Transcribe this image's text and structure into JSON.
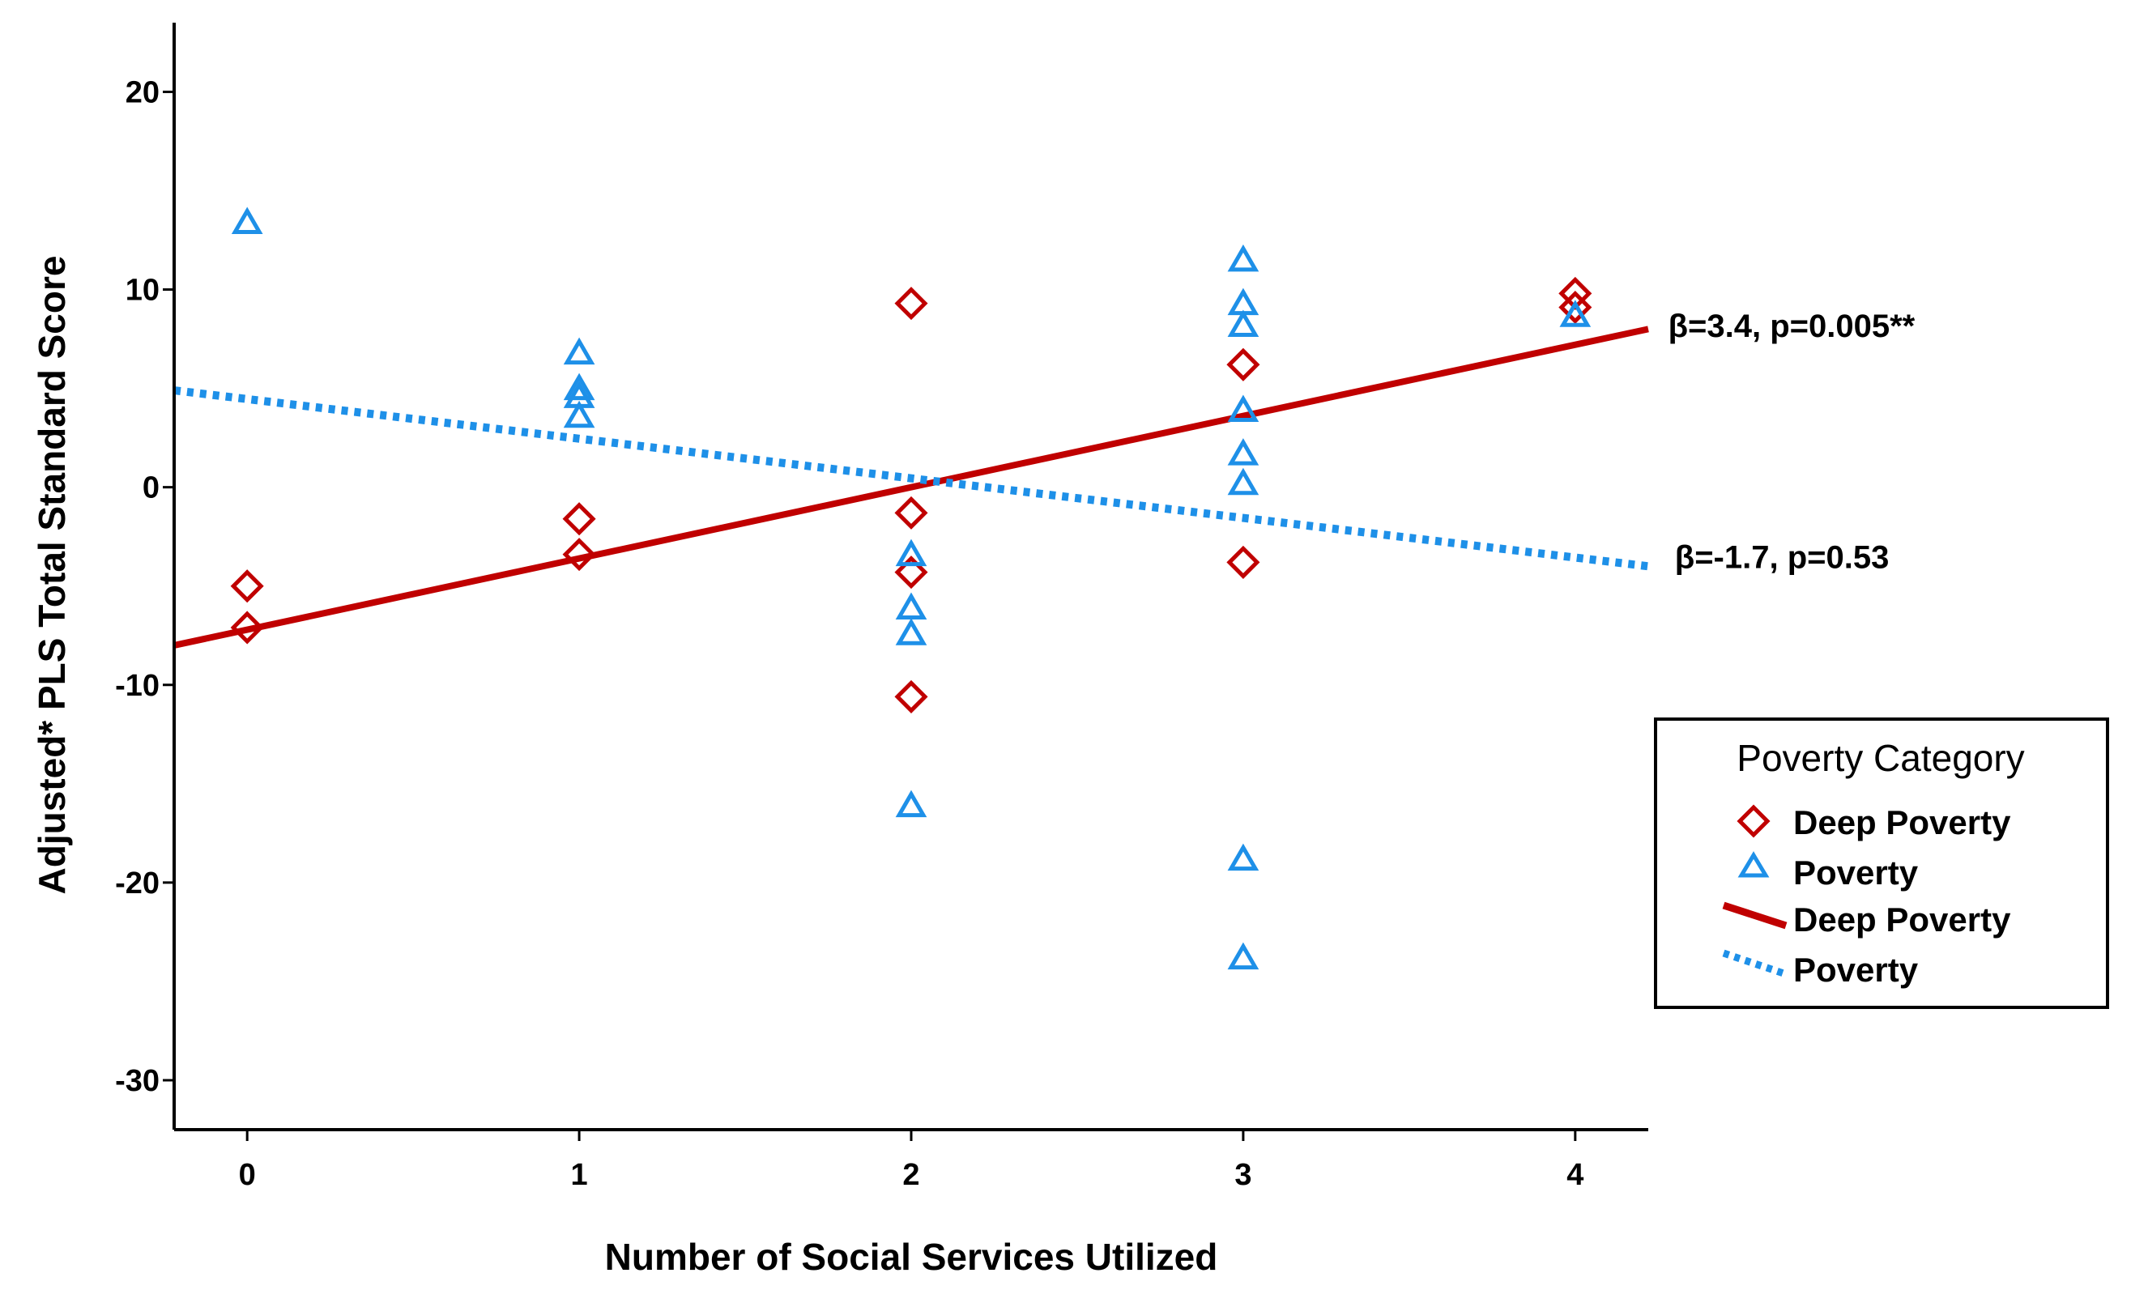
{
  "chart_data": {
    "type": "scatter",
    "title": "",
    "xlabel": "Number of Social Services Utilized",
    "ylabel": "Adjusted* PLS Total Standard Score",
    "xlim": [
      -0.22,
      4.22
    ],
    "ylim": [
      -32.5,
      23.5
    ],
    "x_ticks": [
      0,
      1,
      2,
      3,
      4
    ],
    "y_ticks": [
      -30,
      -20,
      -10,
      0,
      10,
      20
    ],
    "grid": false,
    "legend_position": "right",
    "colors": {
      "deep": "#c00000",
      "poverty": "#1e90e8"
    },
    "series": [
      {
        "name": "Deep Poverty",
        "kind": "points",
        "marker": "diamond",
        "color": "#c00000",
        "points": [
          [
            0,
            -5.0
          ],
          [
            0,
            -7.1
          ],
          [
            1,
            -1.6
          ],
          [
            1,
            -3.4
          ],
          [
            2,
            9.3
          ],
          [
            2,
            -1.3
          ],
          [
            2,
            -4.3
          ],
          [
            2,
            -10.6
          ],
          [
            3,
            6.2
          ],
          [
            3,
            -3.8
          ],
          [
            4,
            9.8
          ],
          [
            4,
            9.1
          ]
        ]
      },
      {
        "name": "Poverty",
        "kind": "points",
        "marker": "triangle",
        "color": "#1e90e8",
        "points": [
          [
            0,
            13.4
          ],
          [
            1,
            6.8
          ],
          [
            1,
            5.0
          ],
          [
            1,
            4.6
          ],
          [
            1,
            3.6
          ],
          [
            2,
            -3.4
          ],
          [
            2,
            -6.1
          ],
          [
            2,
            -7.4
          ],
          [
            2,
            -16.1
          ],
          [
            3,
            11.5
          ],
          [
            3,
            9.3
          ],
          [
            3,
            8.2
          ],
          [
            3,
            3.9
          ],
          [
            3,
            1.7
          ],
          [
            3,
            0.2
          ],
          [
            3,
            -18.8
          ],
          [
            3,
            -23.8
          ],
          [
            4,
            8.7
          ]
        ]
      },
      {
        "name": "Deep Poverty",
        "kind": "fit-line",
        "style": "solid",
        "color": "#c00000",
        "x": [
          -0.22,
          4.22
        ],
        "y": [
          -8.0,
          8.0
        ]
      },
      {
        "name": "Poverty",
        "kind": "fit-line",
        "style": "dotted",
        "color": "#1e90e8",
        "x": [
          -0.22,
          4.22
        ],
        "y": [
          4.9,
          -4.0
        ]
      }
    ],
    "annotations": [
      {
        "text": "β=3.4, p=0.005**",
        "x": 4.28,
        "y": 7.6
      },
      {
        "text": "β=-1.7, p=0.53",
        "x": 4.3,
        "y": -4.1
      }
    ],
    "legend": {
      "title": "Poverty Category",
      "items": [
        {
          "label": "Deep Poverty",
          "symbol": "diamond",
          "color": "#c00000"
        },
        {
          "label": "Poverty",
          "symbol": "triangle",
          "color": "#1e90e8"
        },
        {
          "label": "Deep Poverty",
          "symbol": "solid-line",
          "color": "#c00000"
        },
        {
          "label": "Poverty",
          "symbol": "dotted-line",
          "color": "#1e90e8"
        }
      ]
    }
  }
}
